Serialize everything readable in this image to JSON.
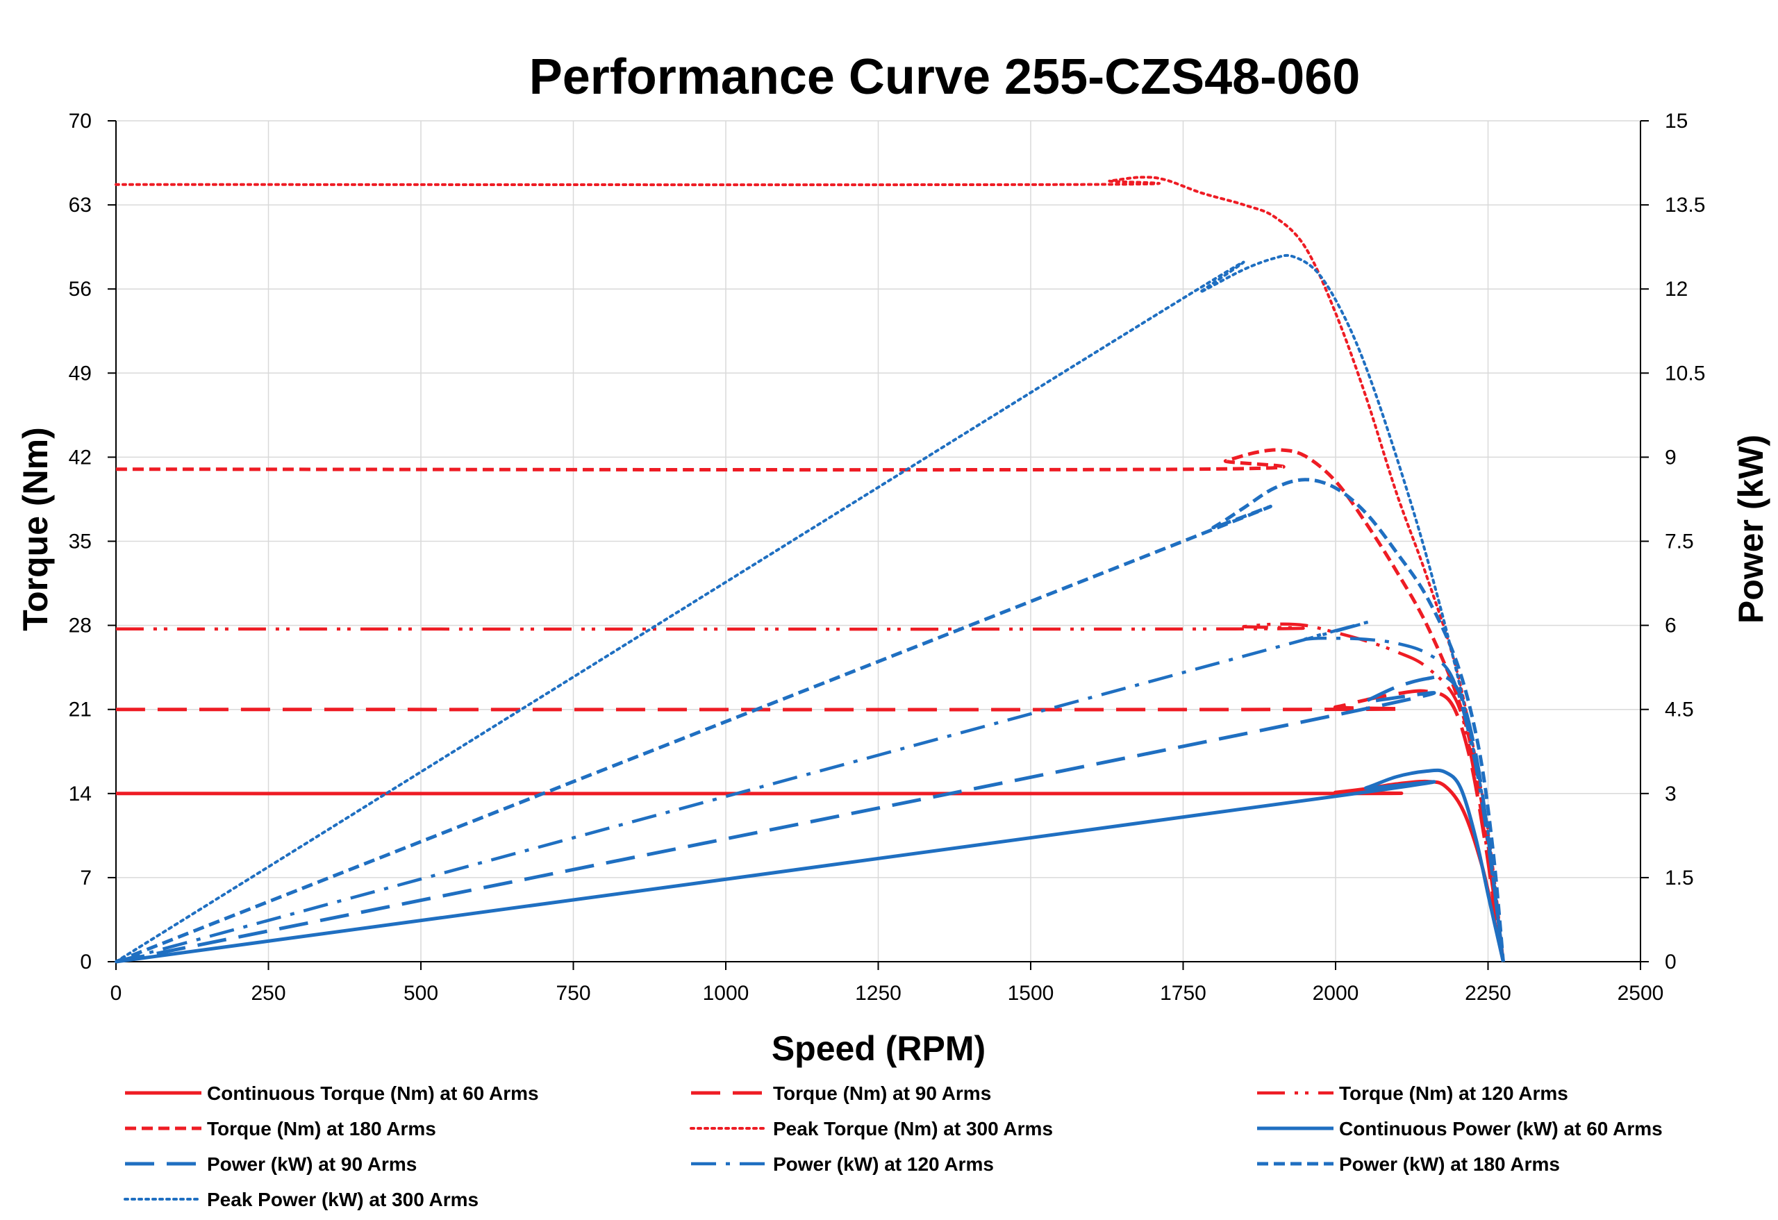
{
  "chart_data": {
    "type": "line",
    "title": "Performance Curve 255-CZS48-060",
    "xlabel": "Speed (RPM)",
    "ylabel": "Torque (Nm)",
    "y2label": "Power (kW)",
    "xlim": [
      0,
      2500
    ],
    "ylim": [
      0,
      70
    ],
    "y2lim": [
      0,
      15
    ],
    "x_ticks": [
      0,
      250,
      500,
      750,
      1000,
      1250,
      1500,
      1750,
      2000,
      2250,
      2500
    ],
    "y_ticks": [
      0,
      7,
      14,
      21,
      28,
      35,
      42,
      49,
      56,
      63,
      70
    ],
    "y2_ticks": [
      "0",
      "1.5",
      "3",
      "4.5",
      "6",
      "7.5",
      "9",
      "10.5",
      "12",
      "13.5",
      "15"
    ],
    "grid": true,
    "legend_position": "bottom",
    "colors": {
      "torque": "#ee1c24",
      "power": "#1f6fc1"
    },
    "series": [
      {
        "name": "Continuous Torque (Nm) at 60 Arms",
        "axis": "left",
        "color": "#ee1c24",
        "style": "solid",
        "points": [
          [
            0,
            14
          ],
          [
            1950,
            14
          ],
          [
            2000,
            14.1
          ],
          [
            2050,
            14.4
          ],
          [
            2100,
            14.8
          ],
          [
            2150,
            15
          ],
          [
            2180,
            14.6
          ],
          [
            2210,
            12.5
          ],
          [
            2240,
            8
          ],
          [
            2260,
            3.5
          ],
          [
            2275,
            0
          ]
        ]
      },
      {
        "name": "Torque (Nm) at 90 Arms",
        "axis": "left",
        "color": "#ee1c24",
        "style": "longdash",
        "points": [
          [
            0,
            21
          ],
          [
            1950,
            21
          ],
          [
            2000,
            21.2
          ],
          [
            2050,
            21.8
          ],
          [
            2100,
            22.3
          ],
          [
            2150,
            22.5
          ],
          [
            2190,
            21.5
          ],
          [
            2220,
            17
          ],
          [
            2245,
            10
          ],
          [
            2262,
            4
          ],
          [
            2275,
            0
          ]
        ]
      },
      {
        "name": "Torque (Nm) at 120 Arms",
        "axis": "left",
        "color": "#ee1c24",
        "style": "dashdotdot",
        "points": [
          [
            0,
            27.7
          ],
          [
            1800,
            27.7
          ],
          [
            1850,
            27.9
          ],
          [
            1900,
            28.1
          ],
          [
            1950,
            28
          ],
          [
            2000,
            27.4
          ],
          [
            2050,
            26.7
          ],
          [
            2100,
            25.8
          ],
          [
            2150,
            24.5
          ],
          [
            2200,
            21.5
          ],
          [
            2230,
            15
          ],
          [
            2255,
            7
          ],
          [
            2275,
            0
          ]
        ]
      },
      {
        "name": "Torque (Nm) at 180 Arms",
        "axis": "left",
        "color": "#ee1c24",
        "style": "dash",
        "points": [
          [
            0,
            41
          ],
          [
            1770,
            41
          ],
          [
            1820,
            41.7
          ],
          [
            1870,
            42.4
          ],
          [
            1910,
            42.6
          ],
          [
            1950,
            42.1
          ],
          [
            2000,
            40
          ],
          [
            2050,
            36.5
          ],
          [
            2100,
            32.5
          ],
          [
            2150,
            28
          ],
          [
            2200,
            22
          ],
          [
            2230,
            16
          ],
          [
            2255,
            8
          ],
          [
            2275,
            0
          ]
        ]
      },
      {
        "name": "Peak Torque (Nm) at 300 Arms",
        "axis": "left",
        "color": "#ee1c24",
        "style": "dot",
        "points": [
          [
            0,
            64.7
          ],
          [
            1580,
            64.7
          ],
          [
            1630,
            65
          ],
          [
            1680,
            65.3
          ],
          [
            1720,
            65.1
          ],
          [
            1780,
            64
          ],
          [
            1850,
            63
          ],
          [
            1900,
            62
          ],
          [
            1950,
            59.5
          ],
          [
            2000,
            54
          ],
          [
            2050,
            47
          ],
          [
            2100,
            39
          ],
          [
            2150,
            32
          ],
          [
            2200,
            24
          ],
          [
            2240,
            14
          ],
          [
            2260,
            7
          ],
          [
            2275,
            0
          ]
        ]
      },
      {
        "name": "Continuous Power (kW) at 60 Arms",
        "axis": "right",
        "color": "#1f6fc1",
        "style": "solid",
        "points": [
          [
            0,
            0
          ],
          [
            2000,
            2.95
          ],
          [
            2050,
            3.1
          ],
          [
            2100,
            3.3
          ],
          [
            2150,
            3.4
          ],
          [
            2180,
            3.38
          ],
          [
            2205,
            3.1
          ],
          [
            2230,
            2.2
          ],
          [
            2252,
            1.1
          ],
          [
            2275,
            0
          ]
        ]
      },
      {
        "name": "Power (kW) at 90 Arms",
        "axis": "right",
        "color": "#1f6fc1",
        "style": "longdash",
        "points": [
          [
            0,
            0
          ],
          [
            2000,
            4.4
          ],
          [
            2050,
            4.65
          ],
          [
            2100,
            4.9
          ],
          [
            2150,
            5.05
          ],
          [
            2185,
            5.05
          ],
          [
            2210,
            4.6
          ],
          [
            2235,
            3.4
          ],
          [
            2255,
            1.8
          ],
          [
            2275,
            0
          ]
        ]
      },
      {
        "name": "Power (kW) at 120 Arms",
        "axis": "right",
        "color": "#1f6fc1",
        "style": "dashdot",
        "points": [
          [
            0,
            0
          ],
          [
            1900,
            5.6
          ],
          [
            1950,
            5.75
          ],
          [
            2000,
            5.77
          ],
          [
            2050,
            5.75
          ],
          [
            2100,
            5.68
          ],
          [
            2150,
            5.5
          ],
          [
            2190,
            5.1
          ],
          [
            2220,
            4
          ],
          [
            2245,
            2.5
          ],
          [
            2275,
            0
          ]
        ]
      },
      {
        "name": "Power (kW) at 180 Arms",
        "axis": "right",
        "color": "#1f6fc1",
        "style": "dash",
        "points": [
          [
            0,
            0
          ],
          [
            1750,
            7.5
          ],
          [
            1800,
            7.75
          ],
          [
            1850,
            8.1
          ],
          [
            1900,
            8.45
          ],
          [
            1950,
            8.6
          ],
          [
            2000,
            8.45
          ],
          [
            2050,
            8
          ],
          [
            2100,
            7.3
          ],
          [
            2150,
            6.5
          ],
          [
            2200,
            5.3
          ],
          [
            2235,
            3.8
          ],
          [
            2258,
            2
          ],
          [
            2275,
            0
          ]
        ]
      },
      {
        "name": "Peak Power (kW) at 300 Arms",
        "axis": "right",
        "color": "#1f6fc1",
        "style": "dot",
        "points": [
          [
            0,
            0
          ],
          [
            1700,
            11.5
          ],
          [
            1780,
            11.95
          ],
          [
            1850,
            12.35
          ],
          [
            1900,
            12.55
          ],
          [
            1930,
            12.58
          ],
          [
            1970,
            12.3
          ],
          [
            2010,
            11.6
          ],
          [
            2050,
            10.6
          ],
          [
            2100,
            9
          ],
          [
            2150,
            7.2
          ],
          [
            2200,
            5.1
          ],
          [
            2240,
            3
          ],
          [
            2258,
            1.6
          ],
          [
            2275,
            0
          ]
        ]
      }
    ]
  }
}
